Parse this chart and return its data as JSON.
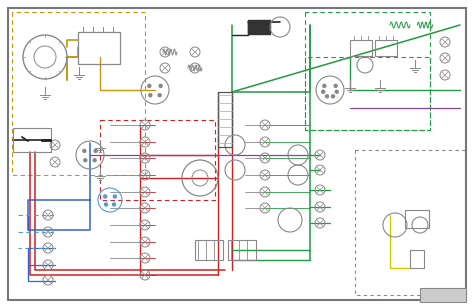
{
  "figsize": [
    4.74,
    3.06
  ],
  "dpi": 100,
  "bg_color": "#ffffff",
  "wire_colors": {
    "orange": "#c8960c",
    "red": "#cc2222",
    "red_dark": "#aa1111",
    "green": "#229944",
    "teal": "#00aa88",
    "blue": "#3366cc",
    "blue_light": "#5599dd",
    "purple": "#884499",
    "black": "#222222",
    "yellow": "#cccc00",
    "gray": "#888888",
    "brown": "#886633",
    "pink": "#cc6688"
  }
}
